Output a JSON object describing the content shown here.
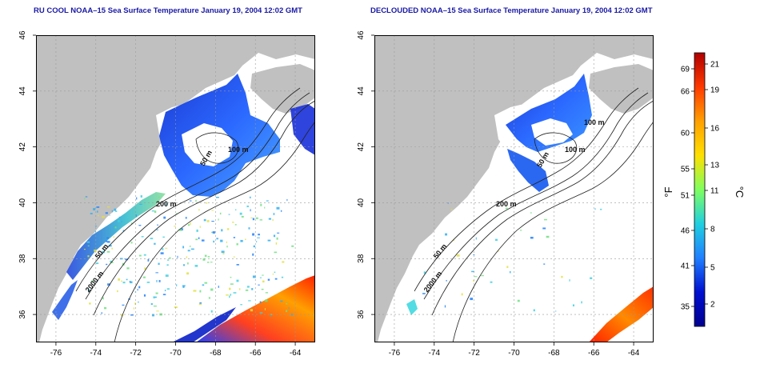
{
  "panels": [
    {
      "id": "rucool",
      "title": "RU COOL NOAA–15 Sea Surface Temperature January 19, 2004 12:02 GMT",
      "x_ticks": [
        "-76",
        "-74",
        "-72",
        "-70",
        "-68",
        "-66",
        "-64"
      ],
      "y_ticks": [
        "36",
        "38",
        "40",
        "42",
        "44",
        "46"
      ],
      "xlim": [
        -77,
        -63
      ],
      "ylim": [
        35,
        46
      ],
      "contour_labels": [
        "200 m",
        "100 m",
        "50 m",
        "2000 m",
        "50 m"
      ]
    },
    {
      "id": "declouded",
      "title": "DECLOUDED NOAA–15 Sea Surface Temperature January 19, 2004 12:02 GMT",
      "x_ticks": [
        "-76",
        "-74",
        "-72",
        "-70",
        "-68",
        "-66",
        "-64"
      ],
      "y_ticks": [
        "36",
        "38",
        "40",
        "42",
        "44",
        "46"
      ],
      "xlim": [
        -77,
        -63
      ],
      "ylim": [
        35,
        46
      ],
      "contour_labels": [
        "200 m",
        "100 m",
        "50 m",
        "100 m",
        "50 m",
        "2000 m"
      ]
    }
  ],
  "colorbar": {
    "fahrenheit_label": "°F",
    "celsius_label": "°C",
    "fahrenheit_ticks": [
      "69",
      "66",
      "60",
      "55",
      "51",
      "46",
      "41",
      "35"
    ],
    "celsius_ticks": [
      "21",
      "19",
      "16",
      "13",
      "11",
      "8",
      "5",
      "2"
    ],
    "colors": [
      "#b00000",
      "#ff3a00",
      "#ffa000",
      "#ffe000",
      "#80ff60",
      "#20d0e0",
      "#2080ff",
      "#0010d0",
      "#000090"
    ]
  },
  "colors": {
    "land": "#c0c0c0",
    "ocean": "#ffffff",
    "grid": "#9a9a9a",
    "title": "#1a1aa6",
    "contour": "#222222"
  }
}
